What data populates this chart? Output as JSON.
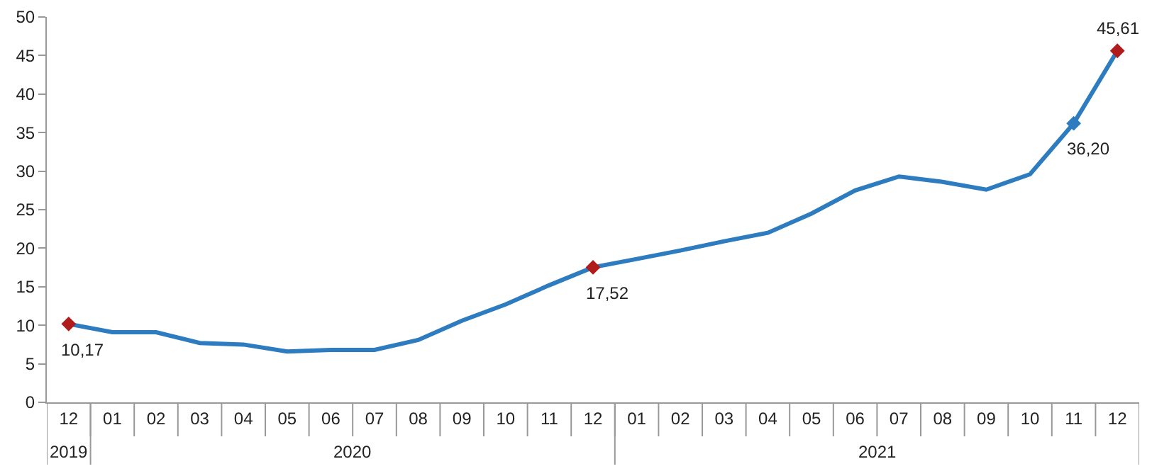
{
  "chart_data": {
    "type": "line",
    "categories": [
      "12",
      "01",
      "02",
      "03",
      "04",
      "05",
      "06",
      "07",
      "08",
      "09",
      "10",
      "11",
      "12",
      "01",
      "02",
      "03",
      "04",
      "05",
      "06",
      "07",
      "08",
      "09",
      "10",
      "11",
      "12"
    ],
    "series": [
      {
        "color": "#2e7cc0",
        "values": [
          10.17,
          9.1,
          9.1,
          7.7,
          7.5,
          6.6,
          6.8,
          6.8,
          8.1,
          10.6,
          12.7,
          15.2,
          17.52,
          18.6,
          19.7,
          20.9,
          22.0,
          24.5,
          27.5,
          29.3,
          28.6,
          27.6,
          29.6,
          36.2,
          45.61
        ],
        "colors": [
          "#b01c1c",
          null,
          null,
          null,
          null,
          null,
          null,
          null,
          null,
          null,
          null,
          null,
          "#b01c1c",
          null,
          null,
          null,
          null,
          null,
          null,
          null,
          null,
          null,
          null,
          "#2e7cc0",
          "#b01c1c"
        ],
        "value_labels": [
          "10,17",
          null,
          null,
          null,
          null,
          null,
          null,
          null,
          null,
          null,
          null,
          null,
          "17,52",
          null,
          null,
          null,
          null,
          null,
          null,
          null,
          null,
          null,
          null,
          "36,20",
          "45,61"
        ]
      }
    ],
    "annotations": [
      "2019",
      "2020",
      "2021"
    ],
    "ylim": [
      0,
      50
    ],
    "yticks": [
      0,
      5,
      10,
      15,
      20,
      25,
      30,
      35,
      40,
      45,
      50
    ],
    "grid": false,
    "line_style": "solid"
  }
}
